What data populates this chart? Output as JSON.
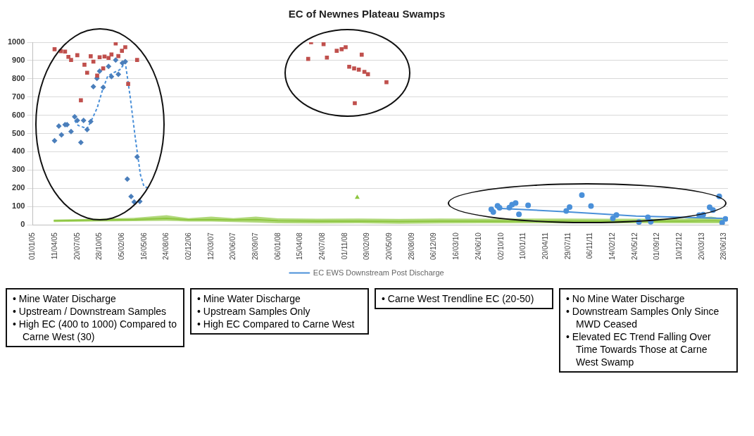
{
  "chart_data": {
    "type": "scatter",
    "title": "EC of Newnes Plateau Swamps",
    "xlim": [
      "2005-01-01",
      "2013-07-15"
    ],
    "ylim": [
      0,
      1000
    ],
    "yticks": [
      0,
      100,
      200,
      300,
      400,
      500,
      600,
      700,
      800,
      900,
      1000
    ],
    "xticks": [
      {
        "value": "2005-01-01",
        "label": "01/01/05"
      },
      {
        "value": "2005-04-11",
        "label": "11/04/05"
      },
      {
        "value": "2005-07-20",
        "label": "20/07/05"
      },
      {
        "value": "2005-10-28",
        "label": "28/10/05"
      },
      {
        "value": "2006-02-05",
        "label": "05/02/06"
      },
      {
        "value": "2006-05-16",
        "label": "16/05/06"
      },
      {
        "value": "2006-08-24",
        "label": "24/08/06"
      },
      {
        "value": "2006-12-02",
        "label": "02/12/06"
      },
      {
        "value": "2007-03-12",
        "label": "12/03/07"
      },
      {
        "value": "2007-06-20",
        "label": "20/06/07"
      },
      {
        "value": "2007-09-28",
        "label": "28/09/07"
      },
      {
        "value": "2008-01-06",
        "label": "06/01/08"
      },
      {
        "value": "2008-04-15",
        "label": "15/04/08"
      },
      {
        "value": "2008-07-24",
        "label": "24/07/08"
      },
      {
        "value": "2008-11-01",
        "label": "01/11/08"
      },
      {
        "value": "2009-02-09",
        "label": "09/02/09"
      },
      {
        "value": "2009-05-20",
        "label": "20/05/09"
      },
      {
        "value": "2009-08-28",
        "label": "28/08/09"
      },
      {
        "value": "2009-12-06",
        "label": "06/12/09"
      },
      {
        "value": "2010-03-16",
        "label": "16/03/10"
      },
      {
        "value": "2010-06-24",
        "label": "24/06/10"
      },
      {
        "value": "2010-10-02",
        "label": "02/10/10"
      },
      {
        "value": "2011-01-10",
        "label": "10/01/11"
      },
      {
        "value": "2011-04-20",
        "label": "20/04/11"
      },
      {
        "value": "2011-07-29",
        "label": "29/07/11"
      },
      {
        "value": "2011-11-06",
        "label": "06/11/11"
      },
      {
        "value": "2012-02-14",
        "label": "14/02/12"
      },
      {
        "value": "2012-05-24",
        "label": "24/05/12"
      },
      {
        "value": "2012-09-01",
        "label": "01/09/12"
      },
      {
        "value": "2012-12-10",
        "label": "10/12/12"
      },
      {
        "value": "2013-03-20",
        "label": "20/03/13"
      },
      {
        "value": "2013-06-28",
        "label": "28/06/13"
      }
    ],
    "grid": "y",
    "legend": "bottom",
    "series": [
      {
        "type": "line",
        "color": "#8dc63f",
        "marker": "none",
        "line_style": "solid",
        "x": [
          "2005-04-05",
          "2005-10-01",
          "2006-04-01",
          "2006-08-24",
          "2006-12-01",
          "2007-03-12",
          "2007-06-20",
          "2007-09-28",
          "2008-01-06",
          "2008-07-01",
          "2009-01-01",
          "2009-07-01",
          "2010-01-01",
          "2010-07-01",
          "2011-01-01",
          "2011-07-01",
          "2012-01-01",
          "2012-07-01",
          "2013-01-01",
          "2013-05-01",
          "2013-06-28"
        ],
        "values": [
          22,
          25,
          28,
          35,
          27,
          28,
          26,
          28,
          22,
          20,
          20,
          18,
          20,
          20,
          20,
          21,
          20,
          20,
          20,
          22,
          20
        ],
        "lower": [
          15,
          18,
          20,
          22,
          18,
          18,
          15,
          12,
          8,
          7,
          8,
          5,
          7,
          8,
          8,
          8,
          8,
          8,
          8,
          8,
          8
        ],
        "upper": [
          28,
          32,
          38,
          52,
          36,
          45,
          36,
          45,
          35,
          33,
          34,
          32,
          34,
          33,
          34,
          34,
          33,
          33,
          33,
          45,
          32
        ]
      },
      {
        "type": "scatter",
        "color": "#8dc63f",
        "marker": "triangle",
        "x": [
          "2008-12-26"
        ],
        "values": [
          150
        ]
      },
      {
        "type": "scatter",
        "color": "#c0504d",
        "marker": "square",
        "x": [
          "2005-04-09",
          "2005-05-07",
          "2005-05-26",
          "2005-06-10",
          "2005-06-22",
          "2005-07-20",
          "2005-08-05",
          "2005-08-21",
          "2005-09-02",
          "2005-09-18",
          "2005-09-30",
          "2005-10-17",
          "2005-10-28",
          "2005-11-13",
          "2005-11-19",
          "2005-12-07",
          "2005-12-20",
          "2006-01-08",
          "2006-01-20",
          "2006-02-05",
          "2006-02-20",
          "2006-03-05",
          "2006-04-14",
          "2008-05-20",
          "2008-06-02",
          "2008-07-28",
          "2008-08-12",
          "2008-09-25",
          "2008-10-17",
          "2008-11-04",
          "2008-11-20",
          "2008-12-12",
          "2008-12-15",
          "2009-01-02",
          "2009-01-15",
          "2009-01-27",
          "2009-02-12",
          "2009-05-06"
        ],
        "values": [
          962,
          951,
          949,
          920,
          903,
          929,
          682,
          877,
          833,
          923,
          894,
          817,
          918,
          857,
          922,
          914,
          933,
          994,
          924,
          953,
          973,
          772,
          903,
          909,
          1000,
          990,
          916,
          953,
          962,
          973,
          866,
          857,
          666,
          850,
          932,
          838,
          825,
          781
        ]
      },
      {
        "type": "scatter",
        "color": "#4a7ebb",
        "marker": "diamond",
        "x": [
          "2005-04-09",
          "2005-04-28",
          "2005-05-10",
          "2005-05-26",
          "2005-06-04",
          "2005-06-22",
          "2005-07-08",
          "2005-07-20",
          "2005-08-05",
          "2005-08-17",
          "2005-09-02",
          "2005-09-18",
          "2005-09-30",
          "2005-10-16",
          "2005-10-28",
          "2005-11-13",
          "2005-11-14",
          "2005-12-07",
          "2005-12-20",
          "2006-01-08",
          "2006-01-20",
          "2006-02-07",
          "2006-02-20",
          "2006-03-01",
          "2006-03-18",
          "2006-04-01",
          "2006-04-14",
          "2006-04-26"
        ],
        "values": [
          461,
          541,
          492,
          548,
          548,
          511,
          592,
          572,
          451,
          572,
          521,
          566,
          757,
          802,
          842,
          753,
          null,
          868,
          812,
          903,
          824,
          886,
          894,
          250,
          155,
          125,
          372,
          128
        ]
      },
      {
        "type": "line",
        "color": "#4a90d9",
        "marker": "none",
        "line_style": "dashed",
        "x": [
          "2005-07-08",
          "2005-07-24",
          "2005-09-02",
          "2005-09-24",
          "2005-10-17",
          "2005-11-09",
          "2005-12-03",
          "2005-12-26",
          "2006-01-26",
          "2006-02-20",
          "2006-03-14",
          "2006-04-06",
          "2006-04-29",
          "2006-05-15",
          "2006-05-30"
        ],
        "values": [
          571,
          544,
          527,
          579,
          640,
          735,
          814,
          831,
          849,
          889,
          701,
          474,
          274,
          209,
          204
        ]
      },
      {
        "type": "scatter",
        "color": "#4a90d9",
        "marker": "circle",
        "x": [
          "2010-08-19",
          "2010-08-28",
          "2010-09-16",
          "2010-09-25",
          "2010-11-08",
          "2010-11-20",
          "2010-12-06",
          "2010-12-21",
          "2011-01-31",
          "2011-07-21",
          "2011-08-05",
          "2011-09-29",
          "2011-11-09",
          "2012-02-15",
          "2012-03-02",
          "2012-06-11",
          "2012-07-21",
          "2012-08-03",
          "2013-03-08",
          "2013-03-26",
          "2013-04-24",
          "2013-05-09",
          "2013-06-06",
          "2013-06-19",
          "2013-07-04"
        ],
        "values": [
          84,
          70,
          104,
          93,
          94,
          110,
          119,
          57,
          106,
          76,
          97,
          162,
          103,
          35,
          53,
          15,
          41,
          17,
          52,
          55,
          96,
          80,
          156,
          11,
          32
        ]
      },
      {
        "type": "line",
        "name": "EC EWS Downstream Post Discharge",
        "color": "#4a90d9",
        "marker": "none",
        "line_style": "solid",
        "x": [
          "2010-09-16",
          "2011-07-24",
          "2012-05-29",
          "2013-06-22"
        ],
        "values": [
          90,
          71,
          48,
          35
        ]
      }
    ],
    "annotations": [
      "• Mine Water Discharge\n• Upstream / Downstream Samples\n• High EC (400 to 1000) Compared to Carne West (30)",
      "• Mine Water Discharge\n• Upstream Samples Only\n• High EC Compared to Carne West",
      "• Carne West Trendline EC (20-50)",
      "• No Mine Water Discharge\n• Downstream Samples Only Since MWD Ceased\n• Elevated EC Trend Falling Over Time Towards Those at Carne West Swamp"
    ]
  }
}
